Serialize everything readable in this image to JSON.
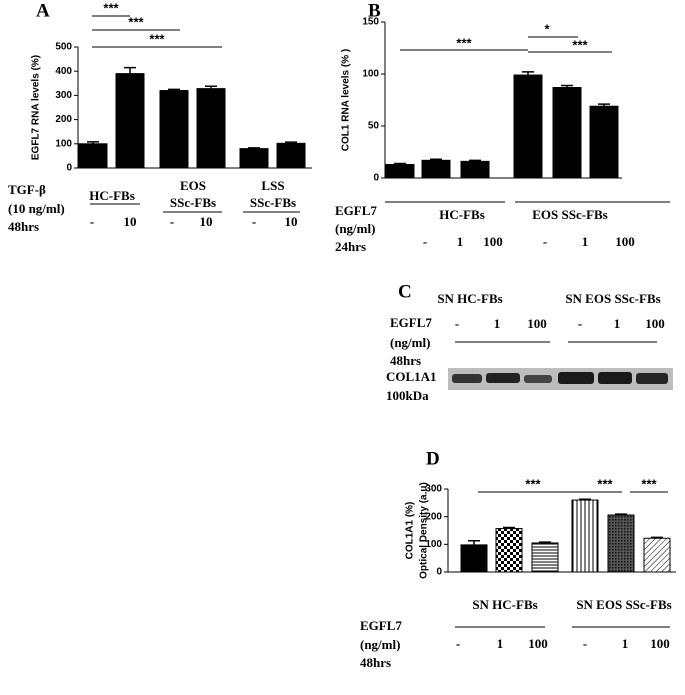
{
  "chart_data": [
    {
      "type": "bar",
      "panel": "A",
      "ylabel": [
        "EGFL7 RNA levels (%)"
      ],
      "ylim": [
        0,
        500
      ],
      "yticks": [
        0,
        100,
        200,
        300,
        400,
        500
      ],
      "categories": [
        "-",
        "10",
        "-",
        "10",
        "-",
        "10"
      ],
      "values": [
        100,
        390,
        320,
        328,
        80,
        102
      ],
      "errors": [
        8,
        25,
        5,
        10,
        3,
        5
      ],
      "color": "#000000",
      "patterns": [
        "solid",
        "solid",
        "solid",
        "solid",
        "solid",
        "solid"
      ],
      "conditions": [
        "TGF-β",
        "(10 ng/ml)",
        "48hrs"
      ],
      "groups": [
        [
          "HC-FBs"
        ],
        [
          "EOS",
          "SSc-FBs"
        ],
        [
          "LSS",
          "SSc-FBs"
        ]
      ],
      "annotations": [
        "***",
        "***",
        "***"
      ]
    },
    {
      "type": "bar",
      "panel": "B",
      "ylabel": [
        "COL1 RNA levels (% )"
      ],
      "ylim": [
        0,
        150
      ],
      "yticks": [
        0,
        50,
        100,
        150
      ],
      "categories": [
        "-",
        "1",
        "100",
        "-",
        "1",
        "100"
      ],
      "values": [
        13,
        17,
        16,
        99,
        87,
        69
      ],
      "errors": [
        1,
        1,
        1,
        3,
        2,
        2
      ],
      "color": "#000000",
      "patterns": [
        "solid",
        "solid",
        "solid",
        "solid",
        "solid",
        "solid"
      ],
      "conditions": [
        "EGFL7",
        "(ng/ml)",
        "24hrs"
      ],
      "groups": [
        [
          "HC-FBs"
        ],
        [
          "EOS SSc-FBs"
        ]
      ],
      "annotations": [
        "***",
        "*",
        "***"
      ]
    },
    {
      "type": "bar",
      "panel": "D",
      "ylabel": [
        "COL1A1 (%)",
        "Optical Density (a.u)"
      ],
      "ylim": [
        0,
        300
      ],
      "yticks": [
        0,
        100,
        200,
        300
      ],
      "categories": [
        "-",
        "1",
        "100",
        "-",
        "1",
        "100"
      ],
      "values": [
        98,
        157,
        105,
        260,
        206,
        122
      ],
      "errors": [
        15,
        4,
        3,
        3,
        3,
        3
      ],
      "color": "#000000",
      "patterns": [
        "solid",
        "checker",
        "hlines",
        "vlines",
        "crosshatch",
        "diagonal"
      ],
      "conditions": [
        "EGFL7",
        "(ng/ml)",
        "48hrs"
      ],
      "groups": [
        [
          "SN HC-FBs"
        ],
        [
          "SN EOS SSc-FBs"
        ]
      ],
      "annotations": [
        "***",
        "***",
        "***"
      ]
    }
  ],
  "blot": {
    "panel": "C",
    "groups": [
      "SN HC-FBs",
      "SN EOS SSc-FBs"
    ],
    "rows": [
      "EGFL7",
      "(ng/ml)",
      "48hrs"
    ],
    "lanes": [
      "-",
      "1",
      "100",
      "-",
      "1",
      "100"
    ],
    "band": [
      "COL1A1",
      "100kDa"
    ]
  }
}
